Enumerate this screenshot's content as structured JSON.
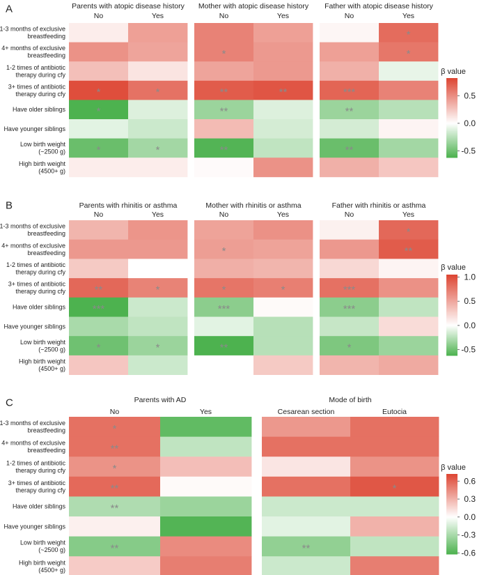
{
  "chart_data": [
    {
      "type": "heatmap",
      "panel_label": "A",
      "row_labels": [
        [
          "1-3 months of exclusive",
          "breastfeeding"
        ],
        [
          "4+ months of exclusive",
          "breastfeeding"
        ],
        [
          "1-2 times of antibiotic",
          "therapy during cfy"
        ],
        [
          "3+ times of antibiotic",
          "therapy during cfy"
        ],
        [
          "Have older siblings"
        ],
        [
          "Have younger siblings"
        ],
        [
          "Low birth weight",
          "(~2500 g)"
        ],
        [
          "High birth weight",
          "(4500+ g)"
        ]
      ],
      "groups": [
        {
          "title": "Parents with atopic disease history",
          "columns": [
            "No",
            "Yes"
          ],
          "values": [
            [
              0.08,
              0.42
            ],
            [
              0.48,
              0.4
            ],
            [
              0.28,
              0.12
            ],
            [
              0.78,
              0.62
            ],
            [
              -0.62,
              -0.12
            ],
            [
              -0.1,
              -0.18
            ],
            [
              -0.52,
              -0.32
            ],
            [
              0.08,
              0.08
            ]
          ],
          "stars": [
            [
              "",
              ""
            ],
            [
              "",
              ""
            ],
            [
              "",
              ""
            ],
            [
              "*",
              "*"
            ],
            [
              "*",
              ""
            ],
            [
              "",
              ""
            ],
            [
              "*",
              "*"
            ],
            [
              "",
              ""
            ]
          ]
        },
        {
          "title": "Mother with atopic disease history",
          "columns": [
            "No",
            "Yes"
          ],
          "values": [
            [
              0.55,
              0.42
            ],
            [
              0.55,
              0.45
            ],
            [
              0.4,
              0.45
            ],
            [
              0.72,
              0.75
            ],
            [
              -0.35,
              -0.12
            ],
            [
              0.3,
              -0.15
            ],
            [
              -0.6,
              -0.22
            ],
            [
              0.02,
              0.48
            ]
          ],
          "stars": [
            [
              "",
              ""
            ],
            [
              "*",
              ""
            ],
            [
              "",
              ""
            ],
            [
              "**",
              "**"
            ],
            [
              "**",
              ""
            ],
            [
              "",
              ""
            ],
            [
              "**",
              ""
            ],
            [
              "",
              ""
            ]
          ]
        },
        {
          "title": "Father with atopic disease history",
          "columns": [
            "No",
            "Yes"
          ],
          "values": [
            [
              0.04,
              0.65
            ],
            [
              0.42,
              0.6
            ],
            [
              0.35,
              -0.08
            ],
            [
              0.68,
              0.55
            ],
            [
              -0.35,
              -0.25
            ],
            [
              -0.15,
              0.05
            ],
            [
              -0.52,
              -0.32
            ],
            [
              0.35,
              0.25
            ]
          ],
          "stars": [
            [
              "",
              "*"
            ],
            [
              "",
              "*"
            ],
            [
              "",
              ""
            ],
            [
              "***",
              ""
            ],
            [
              "**",
              ""
            ],
            [
              "",
              ""
            ],
            [
              "**",
              ""
            ],
            [
              "",
              ""
            ]
          ]
        }
      ],
      "legend": {
        "title": "β value",
        "ticks": [
          0.5,
          0.0,
          -0.5
        ],
        "tick_labels": [
          "0.5",
          "0.0",
          "-0.5"
        ],
        "range": [
          -0.62,
          0.82
        ]
      }
    },
    {
      "type": "heatmap",
      "panel_label": "B",
      "row_labels": [
        [
          "1-3 months of exclusive",
          "breastfeeding"
        ],
        [
          "4+ months of exclusive",
          "breastfeeding"
        ],
        [
          "1-2 times of antibiotic",
          "therapy during cfy"
        ],
        [
          "3+ times of antibiotic",
          "therapy during cfy"
        ],
        [
          "Have older siblings"
        ],
        [
          "Have younger siblings"
        ],
        [
          "Low birth weight",
          "(~2500 g)"
        ],
        [
          "High birth weight",
          "(4500+ g)"
        ]
      ],
      "groups": [
        {
          "title": "Parents with rhinitis or asthma",
          "columns": [
            "No",
            "Yes"
          ],
          "values": [
            [
              0.42,
              0.6
            ],
            [
              0.58,
              0.58
            ],
            [
              0.3,
              0.0
            ],
            [
              0.85,
              0.7
            ],
            [
              -0.62,
              -0.18
            ],
            [
              -0.3,
              -0.22
            ],
            [
              -0.5,
              -0.35
            ],
            [
              0.32,
              -0.18
            ]
          ],
          "stars": [
            [
              "",
              ""
            ],
            [
              "",
              ""
            ],
            [
              "",
              ""
            ],
            [
              "**",
              "*"
            ],
            [
              "***",
              ""
            ],
            [
              "",
              ""
            ],
            [
              "*",
              "*"
            ],
            [
              "",
              ""
            ]
          ]
        },
        {
          "title": "Mother with rhinitis or asthma",
          "columns": [
            "No",
            "Yes"
          ],
          "values": [
            [
              0.52,
              0.62
            ],
            [
              0.55,
              0.52
            ],
            [
              0.45,
              0.42
            ],
            [
              0.78,
              0.72
            ],
            [
              -0.4,
              0.03
            ],
            [
              -0.1,
              -0.25
            ],
            [
              -0.62,
              -0.25
            ],
            [
              0.0,
              0.3
            ]
          ],
          "stars": [
            [
              "",
              ""
            ],
            [
              "*",
              ""
            ],
            [
              "",
              ""
            ],
            [
              "*",
              "*"
            ],
            [
              "***",
              ""
            ],
            [
              "",
              ""
            ],
            [
              "**",
              ""
            ],
            [
              "",
              ""
            ]
          ]
        },
        {
          "title": "Father with rhinitis or asthma",
          "columns": [
            "No",
            "Yes"
          ],
          "values": [
            [
              0.08,
              0.85
            ],
            [
              0.58,
              0.92
            ],
            [
              0.22,
              0.06
            ],
            [
              0.8,
              0.62
            ],
            [
              -0.4,
              -0.22
            ],
            [
              -0.2,
              0.2
            ],
            [
              -0.45,
              -0.35
            ],
            [
              0.42,
              0.48
            ]
          ],
          "stars": [
            [
              "",
              "*"
            ],
            [
              "",
              "**"
            ],
            [
              "",
              ""
            ],
            [
              "***",
              ""
            ],
            [
              "***",
              ""
            ],
            [
              "",
              ""
            ],
            [
              "*",
              ""
            ],
            [
              "",
              ""
            ]
          ]
        }
      ],
      "legend": {
        "title": "β value",
        "ticks": [
          1.0,
          0.5,
          0.0,
          -0.5
        ],
        "tick_labels": [
          "1.0",
          "0.5",
          "0.0",
          "-0.5"
        ],
        "range": [
          -0.62,
          1.05
        ]
      }
    },
    {
      "type": "heatmap",
      "panel_label": "C",
      "row_labels": [
        [
          "1-3 months of exclusive",
          "breastfeeding"
        ],
        [
          "4+ months of exclusive",
          "breastfeeding"
        ],
        [
          "1-2 times of antibiotic",
          "therapy during cfy"
        ],
        [
          "3+ times of antibiotic",
          "therapy during cfy"
        ],
        [
          "Have older siblings"
        ],
        [
          "Have younger siblings"
        ],
        [
          "Low birth weight",
          "(~2500 g)"
        ],
        [
          "High birth weight",
          "(4500+ g)"
        ]
      ],
      "groups": [
        {
          "title": "Parents with AD",
          "columns": [
            "No",
            "Yes"
          ],
          "values": [
            [
              0.55,
              -0.55
            ],
            [
              0.55,
              -0.22
            ],
            [
              0.42,
              0.25
            ],
            [
              0.58,
              0.02
            ],
            [
              -0.28,
              -0.35
            ],
            [
              0.06,
              -0.6
            ],
            [
              -0.42,
              0.45
            ],
            [
              0.2,
              0.5
            ]
          ],
          "stars": [
            [
              "*",
              ""
            ],
            [
              "**",
              ""
            ],
            [
              "*",
              ""
            ],
            [
              "**",
              ""
            ],
            [
              "**",
              ""
            ],
            [
              "",
              ""
            ],
            [
              "**",
              ""
            ],
            [
              "",
              ""
            ]
          ]
        },
        {
          "title": "Mode of birth",
          "columns": [
            "Cesarean section",
            "Eutocia"
          ],
          "values": [
            [
              0.4,
              0.55
            ],
            [
              0.55,
              0.55
            ],
            [
              0.1,
              0.42
            ],
            [
              0.55,
              0.65
            ],
            [
              -0.18,
              -0.18
            ],
            [
              -0.1,
              0.3
            ],
            [
              -0.38,
              -0.22
            ],
            [
              -0.18,
              0.5
            ]
          ],
          "stars": [
            [
              "",
              ""
            ],
            [
              "",
              ""
            ],
            [
              "",
              ""
            ],
            [
              "",
              "*"
            ],
            [
              "",
              ""
            ],
            [
              "",
              ""
            ],
            [
              "**",
              ""
            ],
            [
              "",
              ""
            ]
          ]
        }
      ],
      "legend": {
        "title": "β value",
        "ticks": [
          0.6,
          0.3,
          0.0,
          -0.3,
          -0.6
        ],
        "tick_labels": [
          "0.6",
          "0.3",
          "0.0",
          "-0.3",
          "-0.6"
        ],
        "range": [
          -0.62,
          0.72
        ]
      }
    }
  ],
  "colors": {
    "positive": "#dd4532",
    "neutral": "#ffffff",
    "negative": "#4db24f",
    "star": "#8a8a8a",
    "text": "#222222"
  }
}
